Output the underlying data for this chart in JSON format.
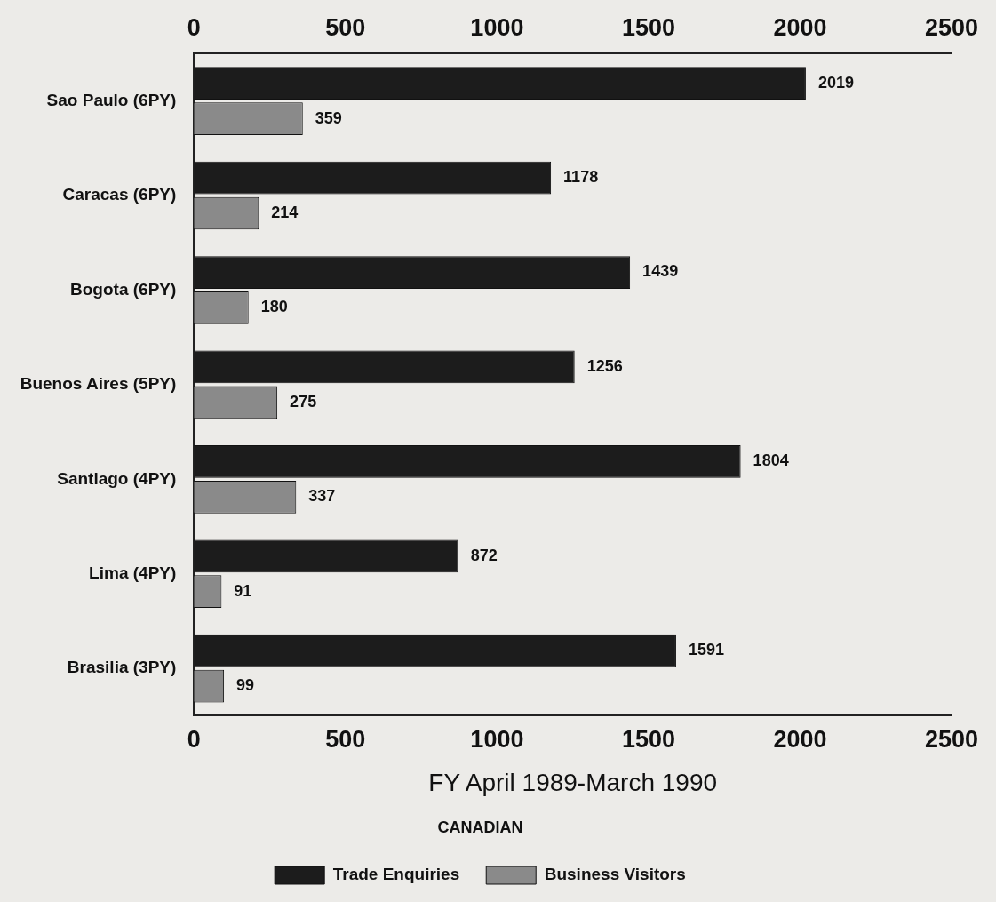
{
  "chart_data": {
    "type": "bar",
    "orientation": "horizontal",
    "xlabel": "FY April 1989-March 1990",
    "legend_title": "CANADIAN",
    "legend": "bottom",
    "data_labels": true,
    "categories": [
      "Sao Paulo (6PY)",
      "Caracas (6PY)",
      "Bogota (6PY)",
      "Buenos Aires (5PY)",
      "Santiago (4PY)",
      "Lima (4PY)",
      "Brasilia (3PY)"
    ],
    "series": [
      {
        "name": "Trade Enquiries",
        "color": "#1c1c1c",
        "values": [
          2019,
          1178,
          1439,
          1256,
          1804,
          872,
          1591
        ]
      },
      {
        "name": "Business Visitors",
        "color": "#8a8a8a",
        "values": [
          359,
          214,
          180,
          275,
          337,
          91,
          99
        ]
      }
    ],
    "xlim": [
      0,
      2500
    ],
    "xticks": [
      0,
      500,
      1000,
      1500,
      2000,
      2500
    ],
    "x2lim": [
      0,
      2500
    ],
    "x2ticks": [
      0,
      500,
      1000,
      1500,
      2000,
      2500
    ]
  }
}
